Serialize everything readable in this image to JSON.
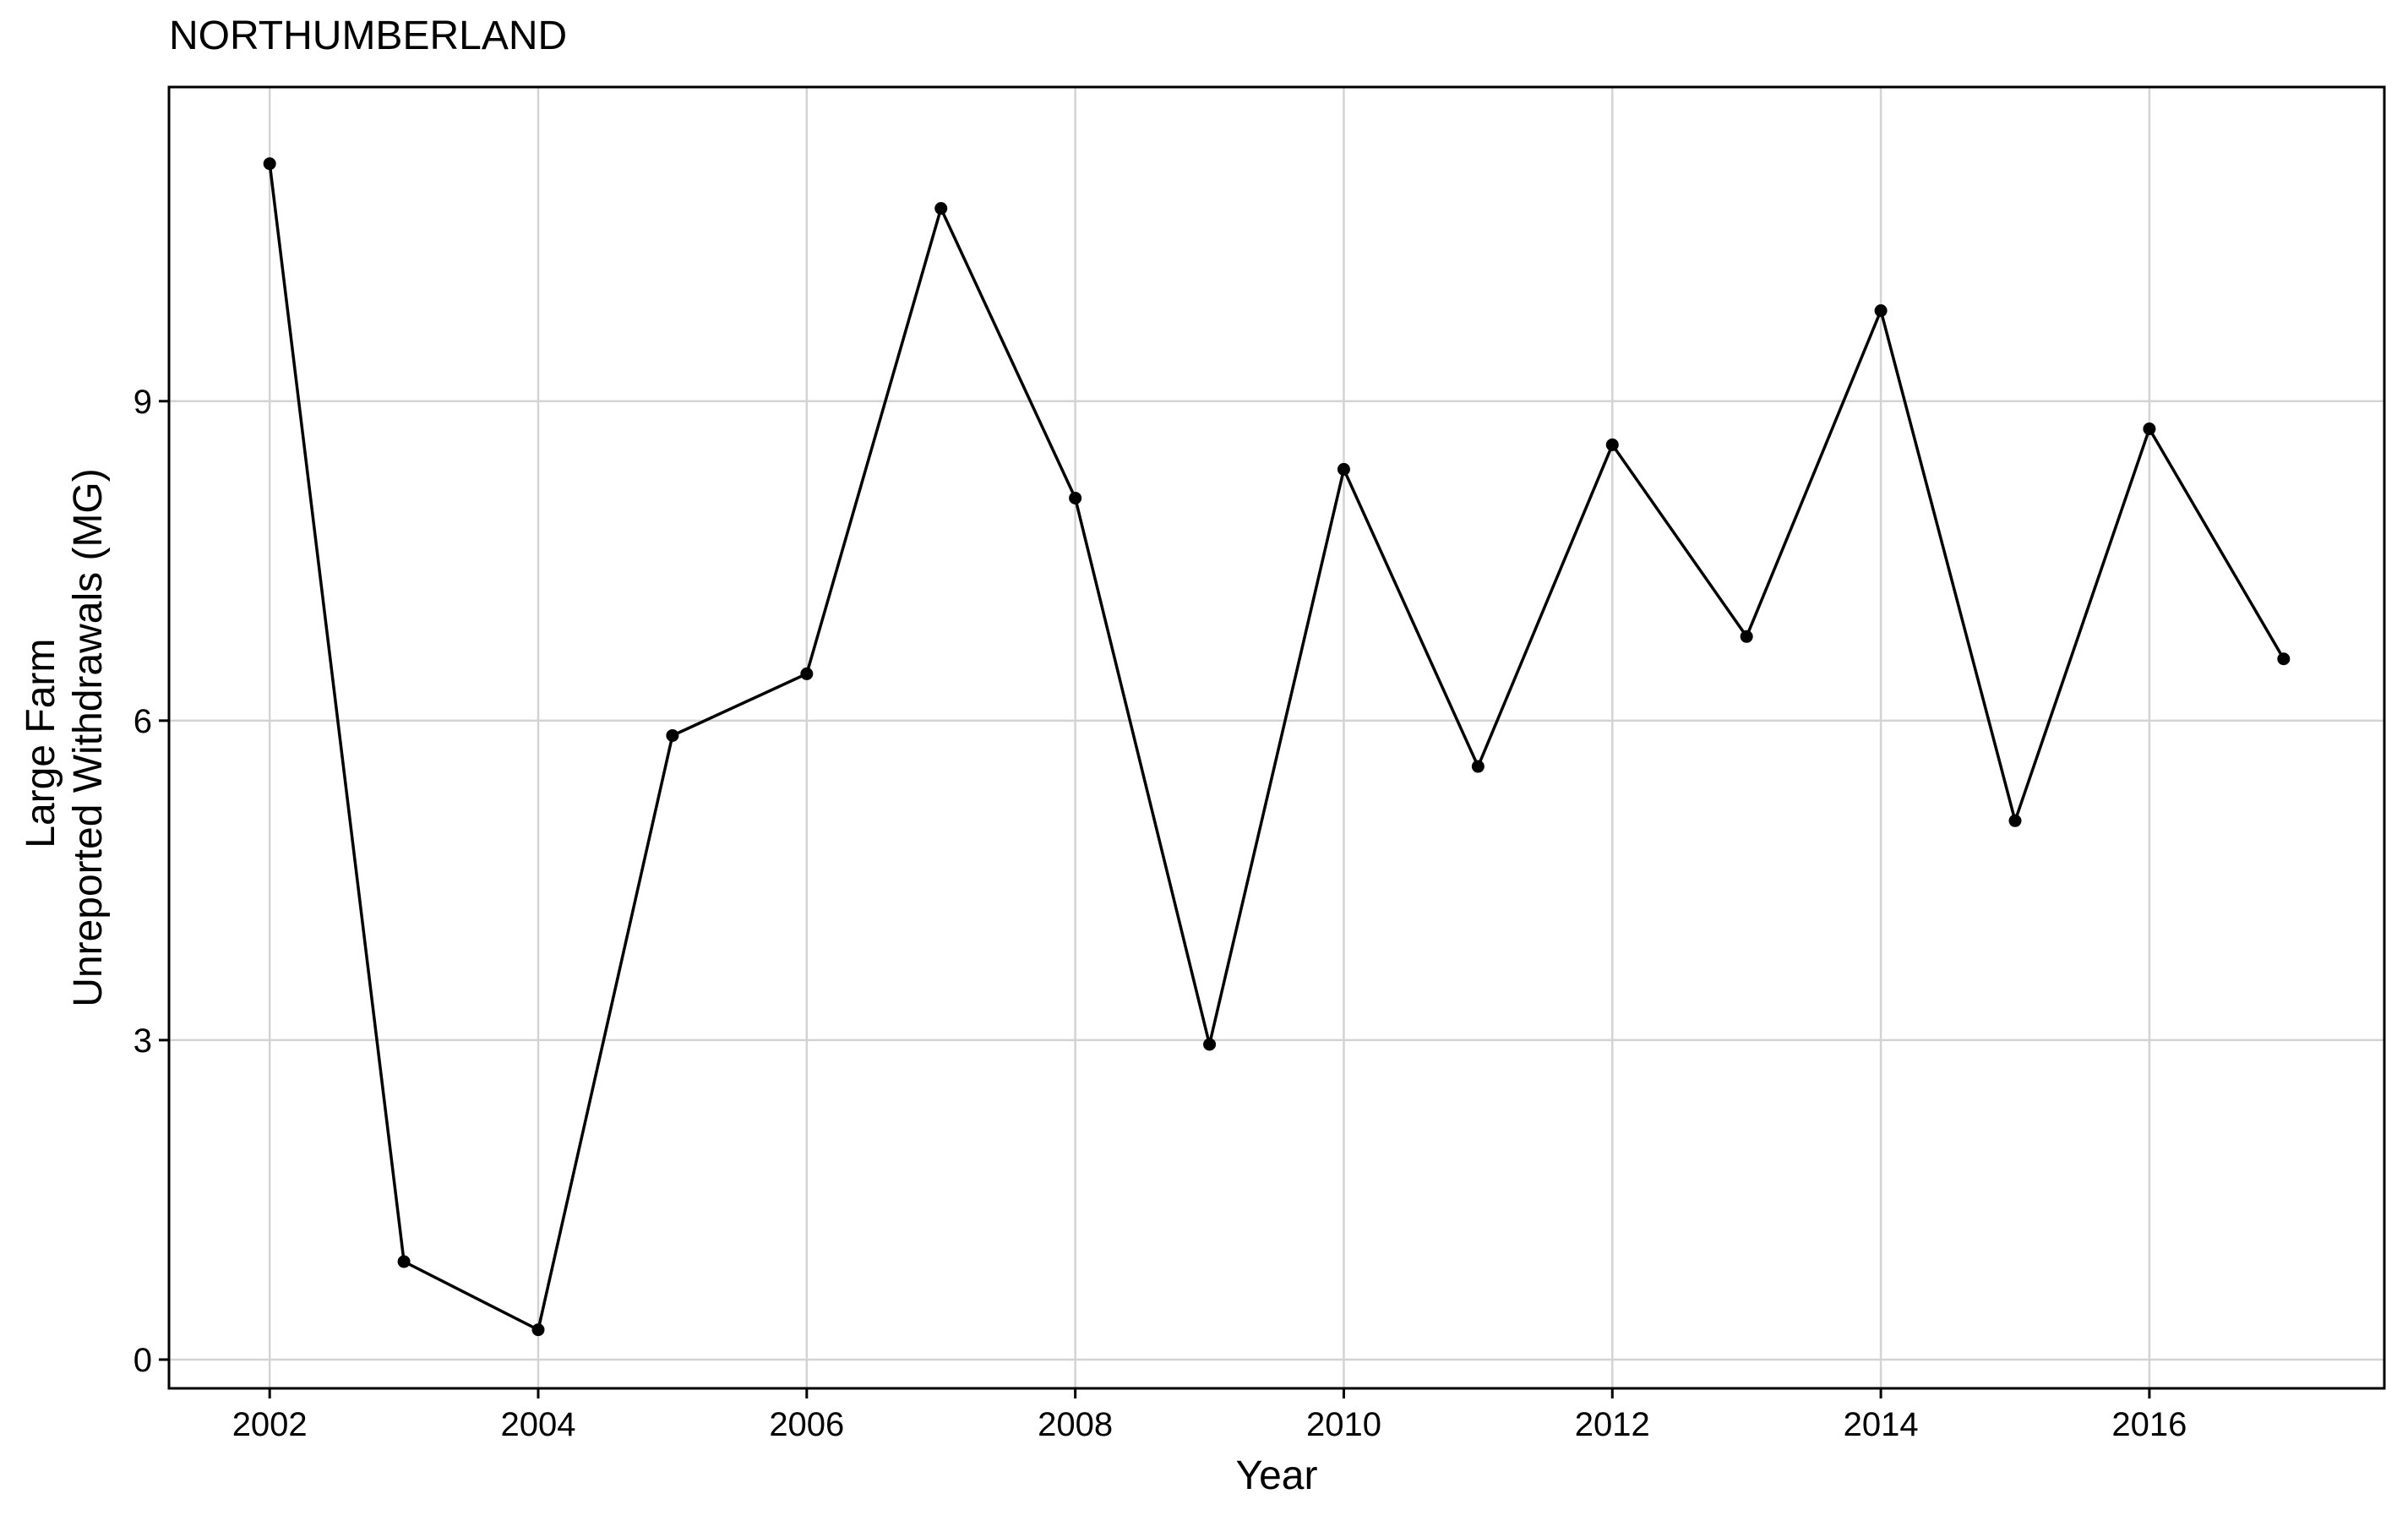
{
  "chart_data": {
    "type": "line",
    "title": "NORTHUMBERLAND",
    "xlabel": "Year",
    "ylabel": [
      "Large Farm",
      "Unreported Withdrawals (MG)"
    ],
    "xlim": [
      2001.25,
      2017.75
    ],
    "ylim": [
      -0.27,
      11.95
    ],
    "x_ticks": [
      2002,
      2004,
      2006,
      2008,
      2010,
      2012,
      2014,
      2016
    ],
    "x_tick_labels": [
      "2002",
      "2004",
      "2006",
      "2008",
      "2010",
      "2012",
      "2014",
      "2016"
    ],
    "y_ticks": [
      0,
      3,
      6,
      9
    ],
    "y_tick_labels": [
      "0",
      "3",
      "6",
      "9"
    ],
    "grid": true,
    "series": [
      {
        "color": "#000000",
        "x": [
          2002,
          2003,
          2004,
          2005,
          2006,
          2007,
          2008,
          2009,
          2010,
          2011,
          2012,
          2013,
          2014,
          2015,
          2016,
          2017
        ],
        "y": [
          11.23,
          0.92,
          0.28,
          5.86,
          6.44,
          10.81,
          8.09,
          2.96,
          8.36,
          5.57,
          8.59,
          6.79,
          9.85,
          5.06,
          8.74,
          6.58
        ]
      }
    ]
  }
}
